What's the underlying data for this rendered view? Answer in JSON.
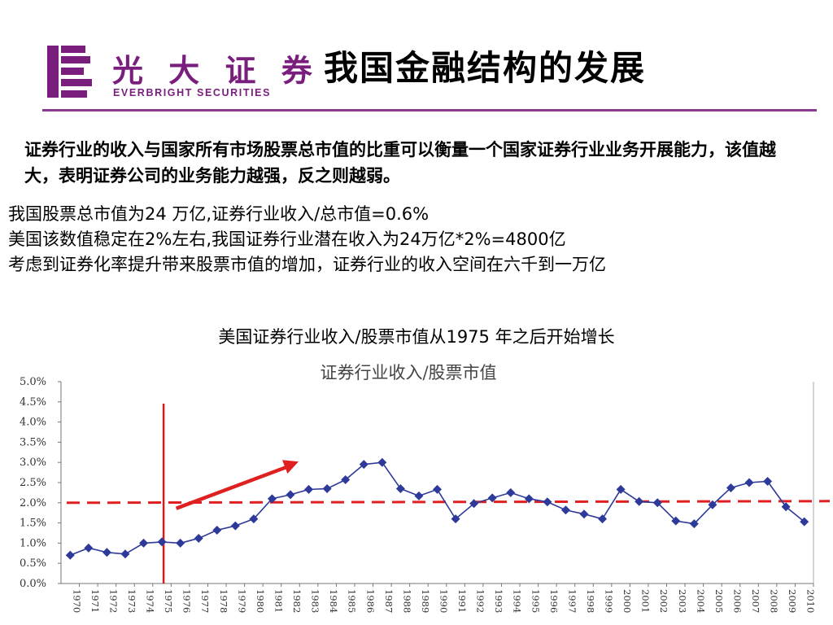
{
  "header": {
    "logo_cn": "光 大 证 券",
    "logo_en": "EVERBRIGHT SECURITIES",
    "title": "我国金融结构的发展",
    "accent_color": "#7a1e7e"
  },
  "intro": "证券行业的收入与国家所有市场股票总市值的比重可以衡量一个国家证券行业业务开展能力，该值越大，表明证券公司的业务能力越强，反之则越弱。",
  "points": [
    "我国股票总市值为24 万亿,证券行业收入/总市值=0.6%",
    "美国该数值稳定在2%左右,我国证券行业潜在收入为24万亿*2%=4800亿",
    "考虑到证券化率提升带来股票市值的增加，证券行业的收入空间在六千到一万亿"
  ],
  "chart_caption": "美国证券行业收入/股票市值从1975 年之后开始增长",
  "chart_data": {
    "type": "line",
    "title": "证券行业收入/股票市值",
    "xlabel": "",
    "ylabel": "",
    "ylim": [
      0,
      5
    ],
    "y_ticks": [
      "0.0%",
      "0.5%",
      "1.0%",
      "1.5%",
      "2.0%",
      "2.5%",
      "3.0%",
      "3.5%",
      "4.0%",
      "4.5%",
      "5.0%"
    ],
    "categories": [
      "1970",
      "1971",
      "1972",
      "1973",
      "1974",
      "1975",
      "1976",
      "1977",
      "1978",
      "1979",
      "1980",
      "1981",
      "1982",
      "1983",
      "1984",
      "1985",
      "1986",
      "1987",
      "1988",
      "1989",
      "1990",
      "1991",
      "1992",
      "1993",
      "1994",
      "1995",
      "1996",
      "1997",
      "1998",
      "1999",
      "2000",
      "2001",
      "2002",
      "2003",
      "2004",
      "2005",
      "2006",
      "2007",
      "2008",
      "2009",
      "2010"
    ],
    "series": [
      {
        "values": [
          0.7,
          0.88,
          0.77,
          0.73,
          1.0,
          1.03,
          1.0,
          1.12,
          1.32,
          1.43,
          1.6,
          2.1,
          2.2,
          2.33,
          2.35,
          2.57,
          2.95,
          3.0,
          2.35,
          2.17,
          2.33,
          1.6,
          1.98,
          2.12,
          2.25,
          2.1,
          2.02,
          1.82,
          1.72,
          1.6,
          2.33,
          2.03,
          2.0,
          1.55,
          1.48,
          1.95,
          2.37,
          2.5,
          2.53,
          1.9,
          1.53
        ],
        "color": "#2e3a9a"
      }
    ],
    "reference_line": {
      "value": 2.0,
      "color": "#e02020",
      "style": "dashed"
    },
    "vertical_marker": {
      "x": "1975",
      "color": "#cc1f1f"
    },
    "trend_arrow": {
      "from": [
        "1976",
        1.8
      ],
      "to": [
        "1982",
        3.0
      ],
      "color": "#e02020"
    },
    "grid": false
  }
}
